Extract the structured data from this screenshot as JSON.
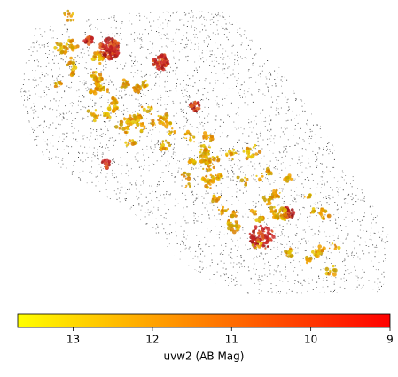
{
  "chart_data": {
    "type": "colormap",
    "xlabel": "uvw2 (AB Mag)",
    "xlim": [
      13.7,
      9
    ],
    "xticks": [
      13,
      12,
      11,
      10,
      9
    ],
    "colors": [
      "#ffff00",
      "#ff0000"
    ]
  }
}
